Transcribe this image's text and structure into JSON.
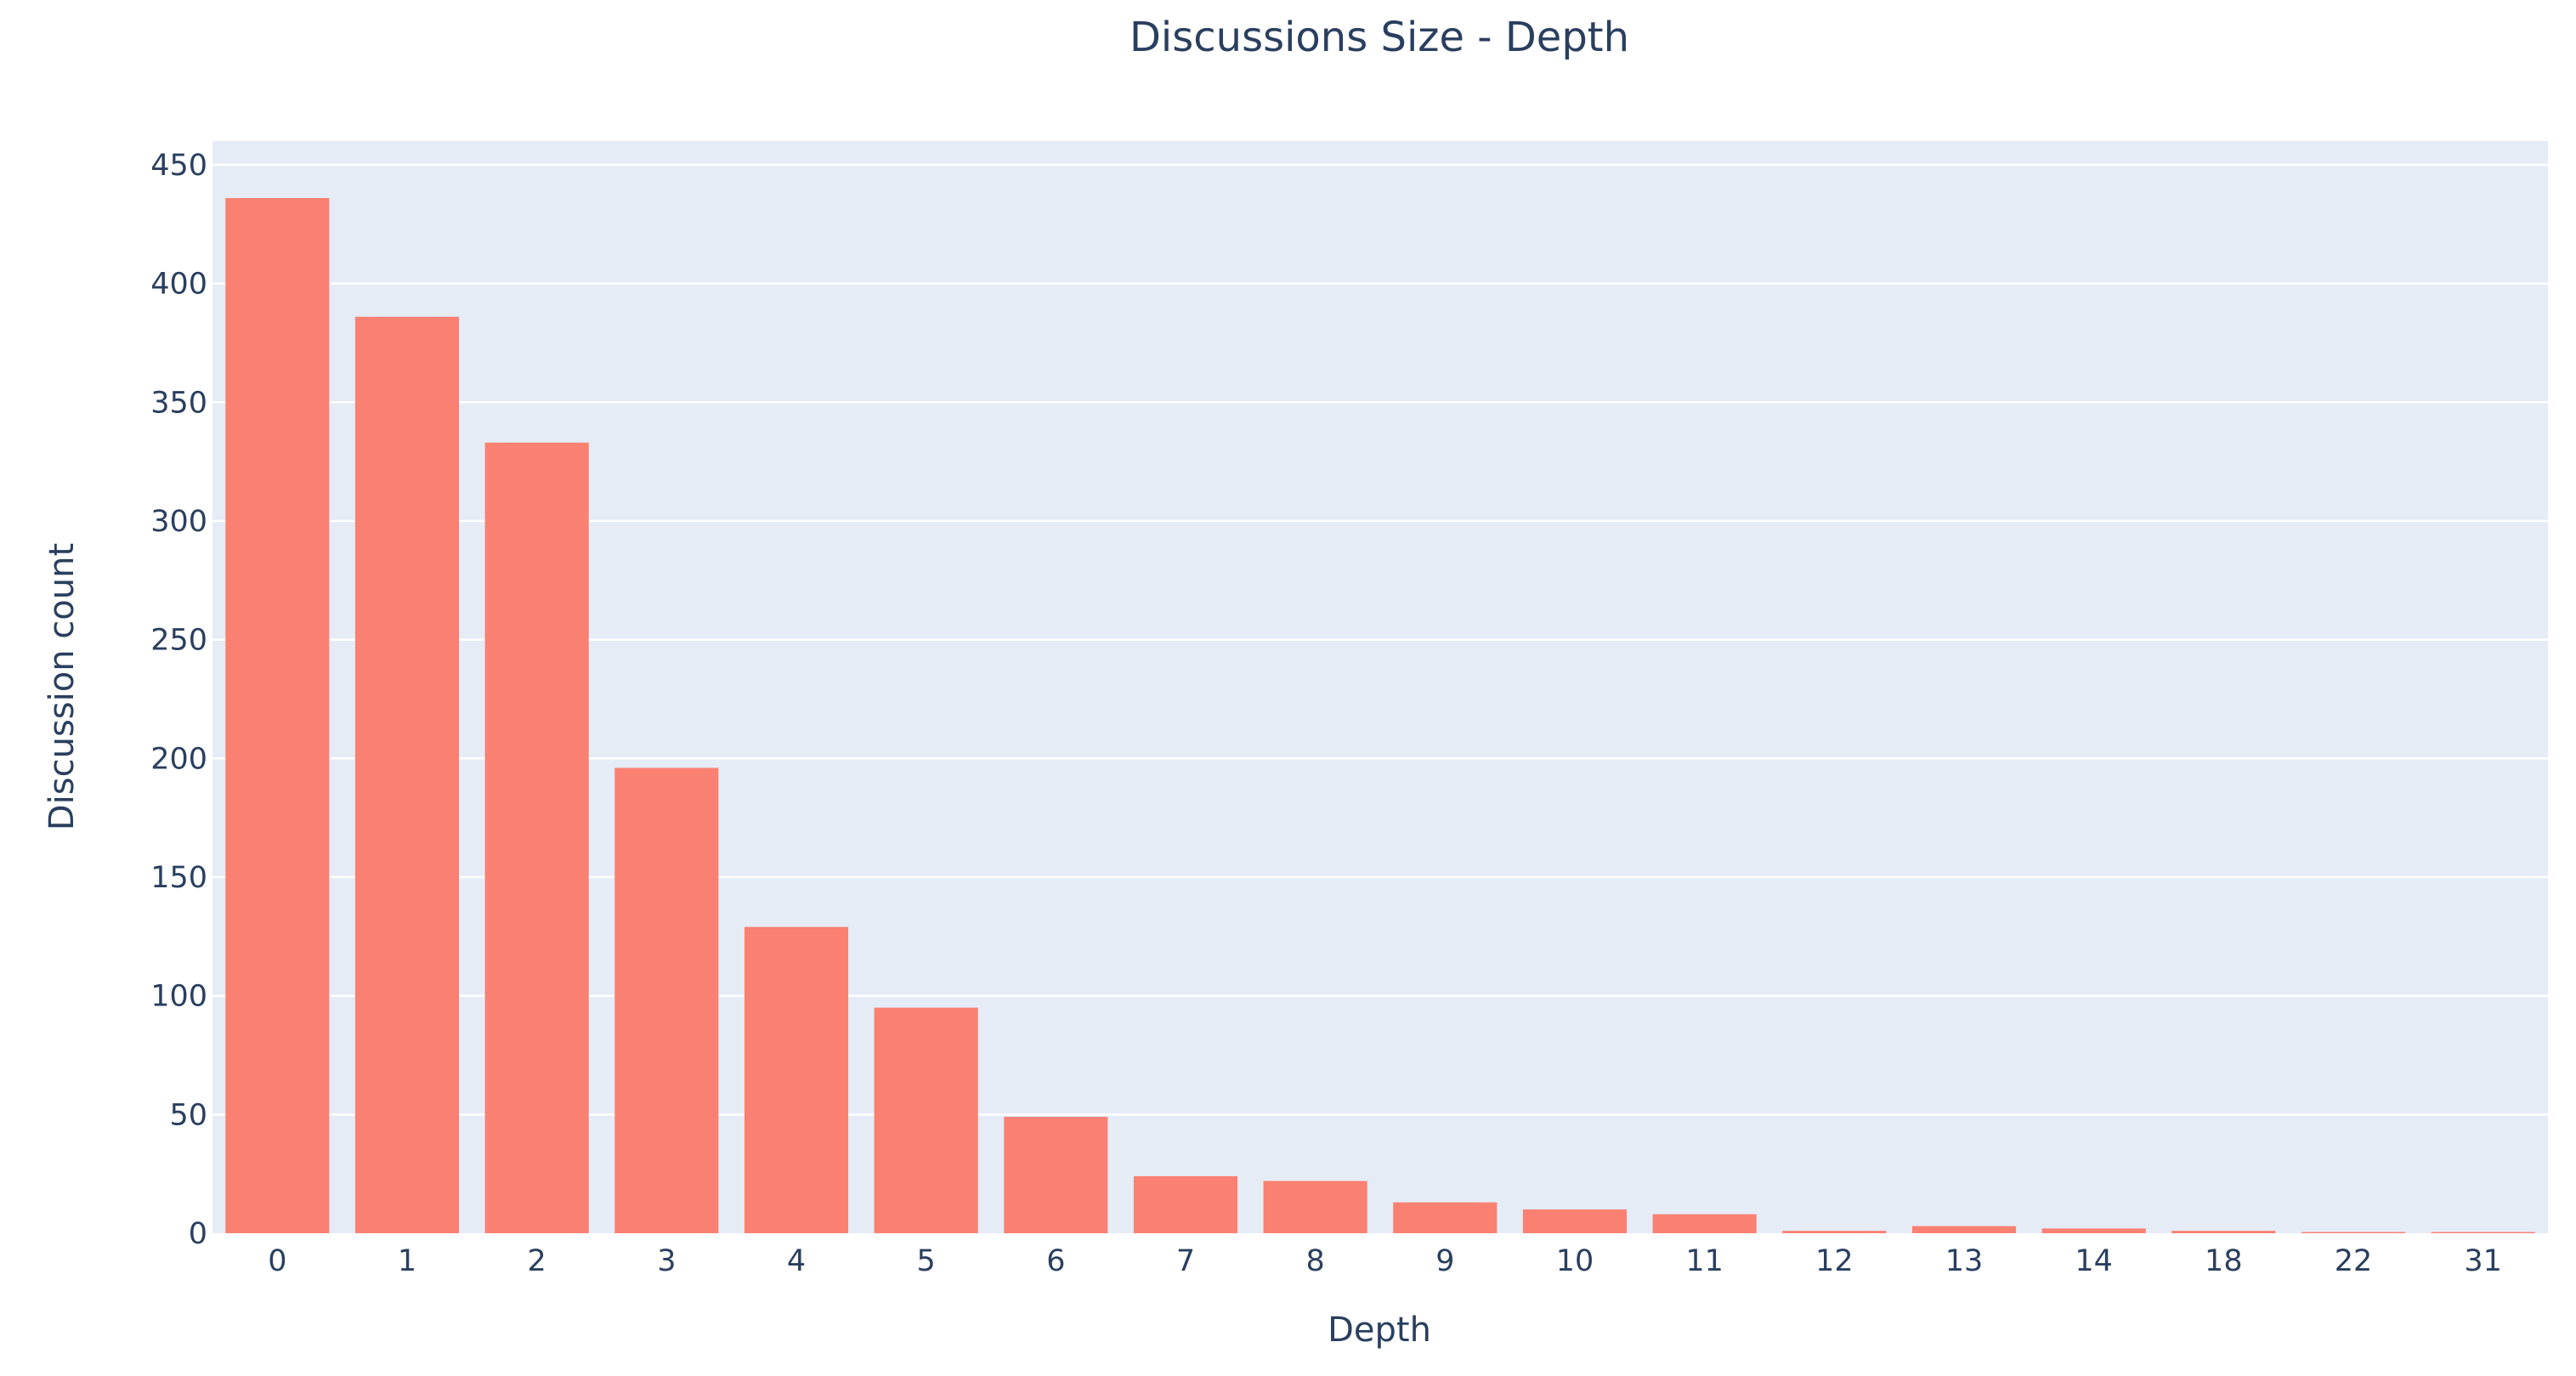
{
  "chart_data": {
    "type": "bar",
    "title": "Discussions Size - Depth",
    "xlabel": "Depth",
    "ylabel": "Discussion count",
    "categories": [
      "0",
      "1",
      "2",
      "3",
      "4",
      "5",
      "6",
      "7",
      "8",
      "9",
      "10",
      "11",
      "12",
      "13",
      "14",
      "18",
      "22",
      "31"
    ],
    "values": [
      436,
      386,
      333,
      196,
      129,
      95,
      49,
      24,
      22,
      13,
      10,
      8,
      1,
      3,
      2,
      1,
      0.5,
      0.5
    ],
    "ylim": [
      0,
      460
    ],
    "yticks": [
      0,
      50,
      100,
      150,
      200,
      250,
      300,
      350,
      400,
      450
    ],
    "bar_color": "#fa8072",
    "plot_background": "#e5ecf6",
    "grid_color": "#ffffff",
    "text_color": "#2a3f5f",
    "grid": true,
    "legend": "none"
  }
}
